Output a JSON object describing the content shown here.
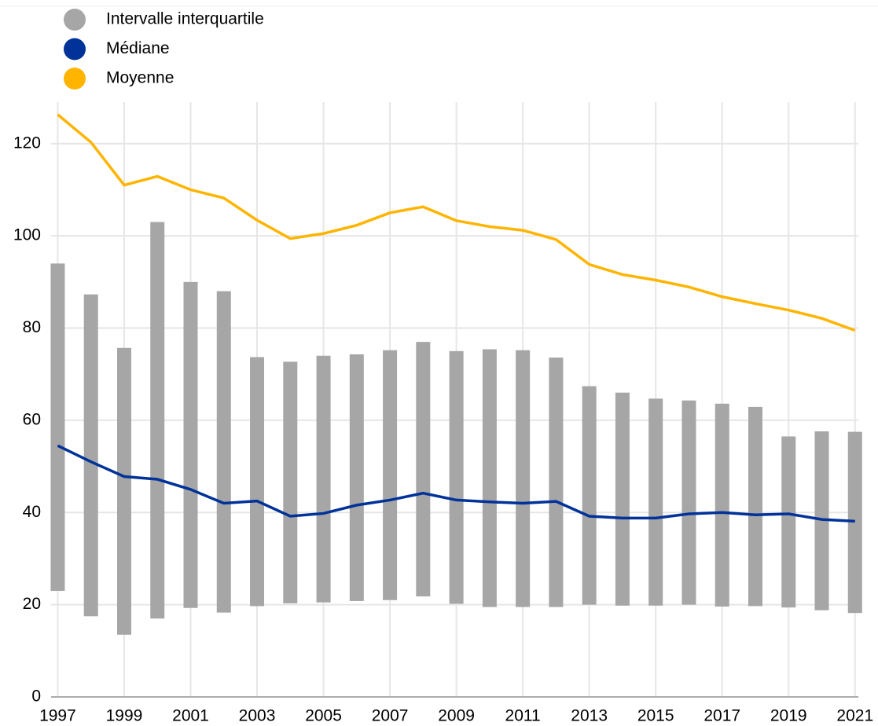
{
  "chart_data": {
    "type": "range-bar-line",
    "x": [
      1997,
      1998,
      1999,
      2000,
      2001,
      2002,
      2003,
      2004,
      2005,
      2006,
      2007,
      2008,
      2009,
      2010,
      2011,
      2012,
      2013,
      2014,
      2015,
      2016,
      2017,
      2018,
      2019,
      2020,
      2021
    ],
    "series": [
      {
        "name": "Intervalle interquartile",
        "color": "#a6a6a6",
        "low": [
          23,
          17.5,
          13.5,
          17,
          19.3,
          18.3,
          19.7,
          20.3,
          20.5,
          20.8,
          21,
          21.8,
          20.2,
          19.5,
          19.5,
          19.5,
          20,
          19.8,
          19.8,
          20,
          19.6,
          19.7,
          19.4,
          18.8,
          18.2
        ],
        "high": [
          94,
          87.3,
          75.7,
          103,
          90,
          88,
          73.7,
          72.7,
          74,
          74.3,
          75.2,
          77,
          75,
          75.4,
          75.2,
          73.6,
          67.4,
          66,
          64.7,
          64.3,
          63.6,
          62.9,
          56.5,
          57.6,
          57.5
        ]
      },
      {
        "name": "Médiane",
        "color": "#003299",
        "values": [
          54.5,
          51,
          47.8,
          47.2,
          45,
          42,
          42.5,
          39.2,
          39.8,
          41.6,
          42.7,
          44.2,
          42.7,
          42.3,
          42,
          42.4,
          39.2,
          38.8,
          38.8,
          39.7,
          40,
          39.5,
          39.7,
          38.5,
          38.1
        ]
      },
      {
        "name": "Moyenne",
        "color": "#ffb400",
        "values": [
          126.3,
          120.3,
          111,
          112.9,
          110,
          108.2,
          103.4,
          99.4,
          100.5,
          102.3,
          105,
          106.3,
          103.3,
          102,
          101.2,
          99.2,
          93.8,
          91.6,
          90.4,
          88.9,
          86.8,
          85.3,
          83.9,
          82.1,
          79.5
        ]
      }
    ],
    "xlim": [
      1996.8,
      2021.1
    ],
    "xticks": [
      1997,
      1999,
      2001,
      2003,
      2005,
      2007,
      2009,
      2011,
      2013,
      2015,
      2017,
      2019,
      2021
    ],
    "ylim": [
      0,
      129
    ],
    "yticks": [
      0,
      20,
      40,
      60,
      80,
      100,
      120
    ],
    "grid": true
  }
}
